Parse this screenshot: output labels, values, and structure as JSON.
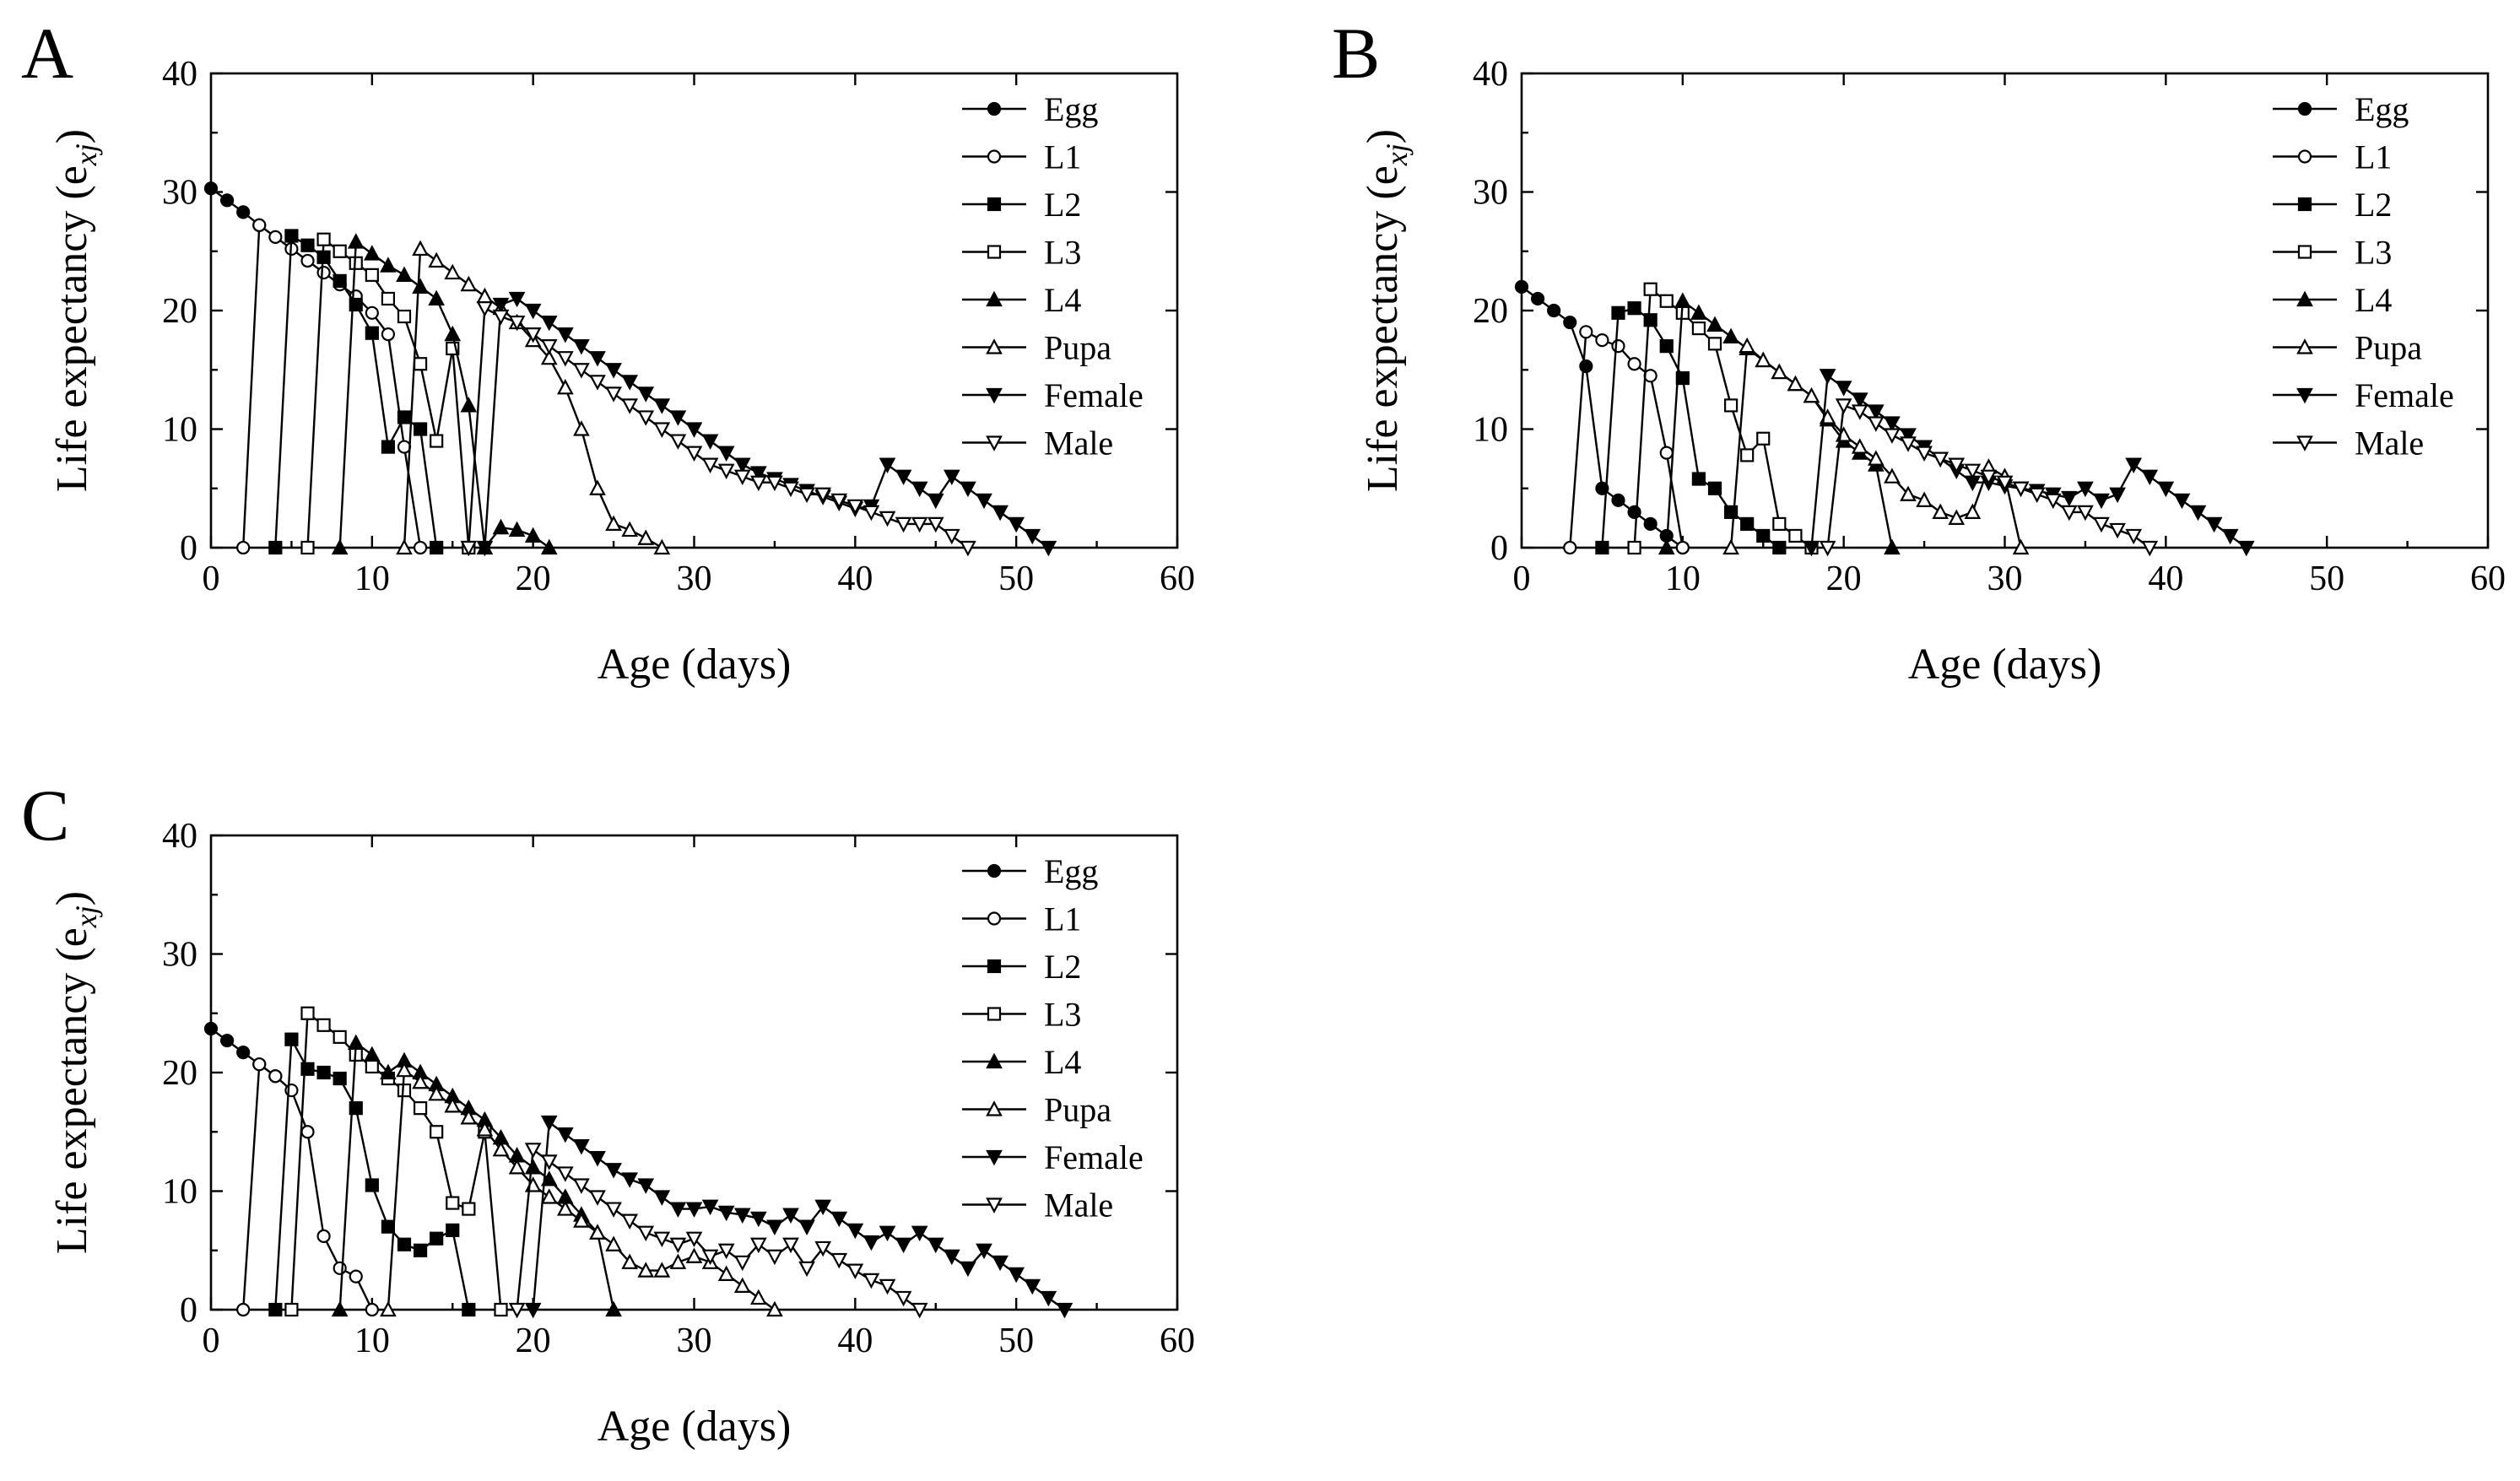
{
  "chart_data": [
    {
      "type": "line",
      "panel_label": "A",
      "xlabel": "Age (days)",
      "ylabel": "Life expectancy (e",
      "ylabel_sub": "xj",
      "ylabel_close": ")",
      "xlim": [
        0,
        60
      ],
      "ylim": [
        0,
        40
      ],
      "xticks": [
        "0",
        "10",
        "20",
        "30",
        "40",
        "50",
        "60"
      ],
      "yticks": [
        "0",
        "10",
        "20",
        "30",
        "40"
      ],
      "legend_position": "top-right",
      "series": [
        {
          "name": "Egg",
          "marker": "circle-filled",
          "x": [
            0,
            1,
            2,
            3
          ],
          "y": [
            30.3,
            29.3,
            28.3,
            27.2
          ]
        },
        {
          "name": "L1",
          "marker": "circle-open",
          "x": [
            2,
            3,
            4,
            5,
            6,
            7,
            8,
            9,
            10,
            11,
            12,
            13
          ],
          "y": [
            0,
            27.2,
            26.2,
            25.2,
            24.2,
            23.2,
            22.2,
            21.2,
            19.8,
            18.0,
            8.5,
            0
          ]
        },
        {
          "name": "L2",
          "marker": "square-filled",
          "x": [
            4,
            5,
            6,
            7,
            8,
            9,
            10,
            11,
            12,
            13,
            14
          ],
          "y": [
            0,
            26.3,
            25.5,
            24.5,
            22.5,
            20.5,
            18.1,
            8.5,
            11.0,
            10.0,
            0
          ]
        },
        {
          "name": "L3",
          "marker": "square-open",
          "x": [
            6,
            7,
            8,
            9,
            10,
            11,
            12,
            13,
            14,
            15,
            16
          ],
          "y": [
            0,
            26.0,
            25.0,
            24.0,
            23.0,
            21.0,
            19.5,
            15.5,
            9.0,
            16.8,
            0
          ]
        },
        {
          "name": "L4",
          "marker": "triangle-up-filled",
          "x": [
            8,
            9,
            10,
            11,
            12,
            13,
            14,
            15,
            16,
            17,
            18,
            19,
            20,
            21
          ],
          "y": [
            0,
            25.8,
            24.8,
            23.8,
            23.0,
            22.0,
            21.0,
            18.0,
            12.0,
            0,
            1.7,
            1.5,
            1.0,
            0
          ]
        },
        {
          "name": "Pupa",
          "marker": "triangle-up-open",
          "x": [
            12,
            13,
            14,
            15,
            16,
            17,
            18,
            19,
            20,
            21,
            22,
            23,
            24,
            25,
            26,
            27,
            28
          ],
          "y": [
            0,
            25.2,
            24.2,
            23.2,
            22.2,
            21.2,
            20.2,
            19.0,
            17.5,
            16.0,
            13.5,
            10.0,
            5.0,
            2.0,
            1.5,
            0.8,
            0
          ]
        },
        {
          "name": "Female",
          "marker": "triangle-down-filled",
          "x": [
            17,
            18,
            19,
            20,
            21,
            22,
            23,
            24,
            25,
            26,
            27,
            28,
            29,
            30,
            31,
            32,
            33,
            34,
            35,
            36,
            37,
            38,
            39,
            40,
            41,
            42,
            43,
            44,
            45,
            46,
            47,
            48,
            49,
            50,
            51,
            52
          ],
          "y": [
            0,
            20.5,
            21.0,
            20.0,
            19.0,
            18.0,
            17.0,
            16.0,
            15.0,
            14.0,
            13.0,
            12.0,
            11.0,
            10.0,
            9.0,
            8.0,
            7.0,
            6.3,
            5.8,
            5.3,
            4.8,
            4.3,
            3.8,
            3.3,
            3.5,
            7.0,
            6.0,
            5.0,
            4.0,
            6.0,
            5.0,
            4.0,
            3.0,
            2.0,
            1.0,
            0
          ]
        },
        {
          "name": "Male",
          "marker": "triangle-down-open",
          "x": [
            16,
            17,
            18,
            19,
            20,
            21,
            22,
            23,
            24,
            25,
            26,
            27,
            28,
            29,
            30,
            31,
            32,
            33,
            34,
            35,
            36,
            37,
            38,
            39,
            40,
            41,
            42,
            43,
            44,
            45,
            46,
            47
          ],
          "y": [
            0,
            20.2,
            19.5,
            19.0,
            18.0,
            17.0,
            16.0,
            15.0,
            14.0,
            13.0,
            12.0,
            11.0,
            10.0,
            9.0,
            8.0,
            7.0,
            6.5,
            6.0,
            5.5,
            5.5,
            5.0,
            4.5,
            4.5,
            4.0,
            3.5,
            3.0,
            2.5,
            2.0,
            2.0,
            2.0,
            1.0,
            0
          ]
        }
      ]
    },
    {
      "type": "line",
      "panel_label": "B",
      "xlabel": "Age (days)",
      "ylabel": "Life expectancy (e",
      "ylabel_sub": "xj",
      "ylabel_close": ")",
      "xlim": [
        0,
        60
      ],
      "ylim": [
        0,
        40
      ],
      "xticks": [
        "0",
        "10",
        "20",
        "30",
        "40",
        "50",
        "60"
      ],
      "yticks": [
        "0",
        "10",
        "20",
        "30",
        "40"
      ],
      "legend_position": "top-right",
      "series": [
        {
          "name": "Egg",
          "marker": "circle-filled",
          "x": [
            0,
            1,
            2,
            3,
            4,
            5,
            6,
            7,
            8,
            9,
            10
          ],
          "y": [
            22.0,
            21.0,
            20.0,
            19.0,
            15.3,
            5.0,
            4.0,
            3.0,
            2.0,
            1.0,
            0
          ]
        },
        {
          "name": "L1",
          "marker": "circle-open",
          "x": [
            3,
            4,
            5,
            6,
            7,
            8,
            9,
            10
          ],
          "y": [
            0,
            18.2,
            17.5,
            17.0,
            15.5,
            14.5,
            8.0,
            0
          ]
        },
        {
          "name": "L2",
          "marker": "square-filled",
          "x": [
            5,
            6,
            7,
            8,
            9,
            10,
            11,
            12,
            13,
            14,
            15,
            16
          ],
          "y": [
            0,
            19.8,
            20.2,
            19.2,
            17.0,
            14.3,
            5.8,
            5.0,
            3.0,
            2.0,
            1.0,
            0
          ]
        },
        {
          "name": "L3",
          "marker": "square-open",
          "x": [
            7,
            8,
            9,
            10,
            11,
            12,
            13,
            14,
            15,
            16,
            17,
            18
          ],
          "y": [
            0,
            21.8,
            20.8,
            19.8,
            18.5,
            17.2,
            12.0,
            7.8,
            9.2,
            2.0,
            1.0,
            0
          ]
        },
        {
          "name": "L4",
          "marker": "triangle-up-filled",
          "x": [
            9,
            10,
            11,
            12,
            13,
            14,
            15,
            16,
            17,
            18,
            19,
            20,
            21,
            22,
            23
          ],
          "y": [
            0,
            20.8,
            19.8,
            18.8,
            17.8,
            16.8,
            15.8,
            14.8,
            13.8,
            12.8,
            10.8,
            9.0,
            8.0,
            7.0,
            0
          ]
        },
        {
          "name": "Pupa",
          "marker": "triangle-up-open",
          "x": [
            13,
            14,
            15,
            16,
            17,
            18,
            19,
            20,
            21,
            22,
            23,
            24,
            25,
            26,
            27,
            28,
            29,
            30,
            31
          ],
          "y": [
            0,
            17.0,
            15.8,
            14.8,
            13.8,
            12.8,
            11.0,
            9.5,
            8.5,
            7.5,
            6.0,
            4.5,
            4.0,
            3.0,
            2.5,
            3.0,
            6.8,
            6.0,
            0
          ]
        },
        {
          "name": "Female",
          "marker": "triangle-down-filled",
          "x": [
            18,
            19,
            20,
            21,
            22,
            23,
            24,
            25,
            26,
            27,
            28,
            29,
            30,
            31,
            32,
            33,
            34,
            35,
            36,
            37,
            38,
            39,
            40,
            41,
            42,
            43,
            44,
            45
          ],
          "y": [
            0,
            14.5,
            13.5,
            12.5,
            11.5,
            10.5,
            9.5,
            8.5,
            7.5,
            6.5,
            5.5,
            5.5,
            5.2,
            5.0,
            4.8,
            4.5,
            4.2,
            5.0,
            4.0,
            4.5,
            7.0,
            6.0,
            5.0,
            4.0,
            3.0,
            2.0,
            1.0,
            0
          ]
        },
        {
          "name": "Male",
          "marker": "triangle-down-open",
          "x": [
            19,
            20,
            21,
            22,
            23,
            24,
            25,
            26,
            27,
            28,
            29,
            30,
            31,
            32,
            33,
            34,
            35,
            36,
            37,
            38,
            39
          ],
          "y": [
            0,
            12.0,
            11.5,
            10.5,
            9.5,
            8.8,
            8.0,
            7.5,
            7.0,
            6.5,
            6.0,
            5.5,
            5.0,
            4.5,
            4.0,
            3.0,
            3.0,
            2.0,
            1.5,
            1.0,
            0
          ]
        }
      ]
    },
    {
      "type": "line",
      "panel_label": "C",
      "xlabel": "Age (days)",
      "ylabel": "Life expectancy (e",
      "ylabel_sub": "xj",
      "ylabel_close": ")",
      "xlim": [
        0,
        60
      ],
      "ylim": [
        0,
        40
      ],
      "xticks": [
        "0",
        "10",
        "20",
        "30",
        "40",
        "50",
        "60"
      ],
      "yticks": [
        "0",
        "10",
        "20",
        "30",
        "40"
      ],
      "legend_position": "top-right",
      "series": [
        {
          "name": "Egg",
          "marker": "circle-filled",
          "x": [
            0,
            1,
            2,
            3,
            4
          ],
          "y": [
            23.7,
            22.7,
            21.7,
            20.7,
            19.7
          ]
        },
        {
          "name": "L1",
          "marker": "circle-open",
          "x": [
            2,
            3,
            4,
            5,
            6,
            7,
            8,
            9,
            10
          ],
          "y": [
            0,
            20.7,
            19.7,
            18.5,
            15.0,
            6.2,
            3.5,
            2.8,
            0
          ]
        },
        {
          "name": "L2",
          "marker": "square-filled",
          "x": [
            4,
            5,
            6,
            7,
            8,
            9,
            10,
            11,
            12,
            13,
            14,
            15,
            16
          ],
          "y": [
            0,
            22.8,
            20.3,
            20.0,
            19.5,
            17.0,
            10.5,
            7.0,
            5.5,
            5.0,
            6.0,
            6.7,
            0
          ]
        },
        {
          "name": "L3",
          "marker": "square-open",
          "x": [
            5,
            6,
            7,
            8,
            9,
            10,
            11,
            12,
            13,
            14,
            15,
            16,
            17,
            18
          ],
          "y": [
            0,
            25.0,
            24.0,
            23.0,
            21.5,
            20.5,
            19.5,
            18.5,
            17.0,
            15.0,
            9.0,
            8.5,
            15.0,
            0
          ]
        },
        {
          "name": "L4",
          "marker": "triangle-up-filled",
          "x": [
            8,
            9,
            10,
            11,
            12,
            13,
            14,
            15,
            16,
            17,
            18,
            19,
            20,
            21,
            22,
            23,
            24,
            25
          ],
          "y": [
            0,
            22.5,
            21.5,
            20.0,
            21.0,
            20.0,
            19.0,
            18.0,
            17.0,
            16.0,
            14.5,
            13.0,
            12.0,
            11.0,
            9.5,
            8.0,
            6.5,
            0
          ]
        },
        {
          "name": "Pupa",
          "marker": "triangle-up-open",
          "x": [
            11,
            12,
            13,
            14,
            15,
            16,
            17,
            18,
            19,
            20,
            21,
            22,
            23,
            24,
            25,
            26,
            27,
            28,
            29,
            30,
            31,
            32,
            33,
            34,
            35
          ],
          "y": [
            0,
            20.2,
            19.2,
            18.2,
            17.2,
            16.2,
            15.2,
            13.5,
            12.0,
            10.5,
            9.5,
            8.5,
            7.5,
            6.5,
            5.5,
            4.0,
            3.3,
            3.3,
            4.0,
            4.5,
            4.0,
            3.0,
            2.0,
            1.0,
            0
          ]
        },
        {
          "name": "Female",
          "marker": "triangle-down-filled",
          "x": [
            20,
            21,
            22,
            23,
            24,
            25,
            26,
            27,
            28,
            29,
            30,
            31,
            32,
            33,
            34,
            35,
            36,
            37,
            38,
            39,
            40,
            41,
            42,
            43,
            44,
            45,
            46,
            47,
            48,
            49,
            50,
            51,
            52,
            53
          ],
          "y": [
            0,
            15.8,
            14.8,
            13.8,
            12.8,
            11.8,
            11.0,
            10.5,
            9.5,
            8.5,
            8.5,
            8.7,
            8.2,
            8.0,
            7.7,
            7.0,
            8.0,
            7.0,
            8.7,
            7.7,
            6.7,
            5.7,
            6.5,
            5.5,
            6.5,
            5.5,
            4.5,
            3.5,
            5.0,
            4.0,
            3.0,
            2.0,
            1.0,
            0
          ]
        },
        {
          "name": "Male",
          "marker": "triangle-down-open",
          "x": [
            19,
            20,
            21,
            22,
            23,
            24,
            25,
            26,
            27,
            28,
            29,
            30,
            31,
            32,
            33,
            34,
            35,
            36,
            37,
            38,
            39,
            40,
            41,
            42,
            43,
            44
          ],
          "y": [
            0,
            13.5,
            12.5,
            11.5,
            10.5,
            9.5,
            8.5,
            7.5,
            6.5,
            6.0,
            5.5,
            6.0,
            4.5,
            5.0,
            4.0,
            5.5,
            4.5,
            5.5,
            3.5,
            5.2,
            4.2,
            3.3,
            2.5,
            2.0,
            1.0,
            0
          ]
        }
      ]
    }
  ]
}
